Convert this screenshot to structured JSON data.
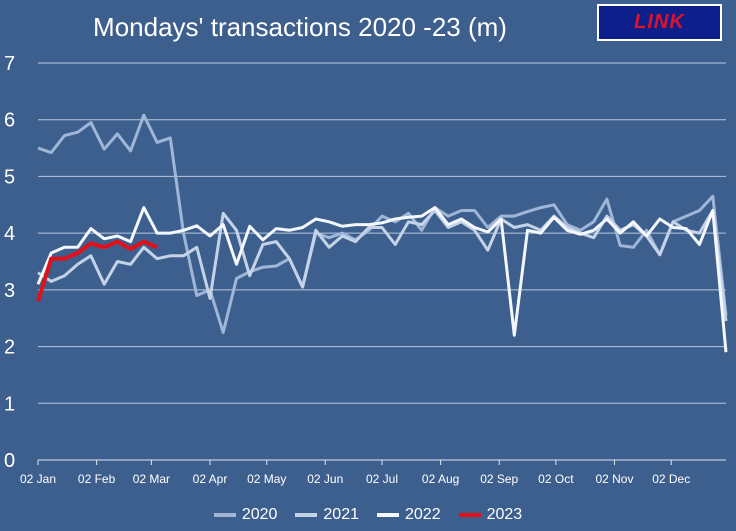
{
  "title": "Mondays' transactions 2020 -23 (m)",
  "logo_text": "LINK",
  "chart_data": {
    "type": "line",
    "title": "Mondays' transactions 2020 -23 (m)",
    "ylim": [
      0,
      7
    ],
    "yticks": [
      "0",
      "1",
      "2",
      "3",
      "4",
      "5",
      "6",
      "7"
    ],
    "xlim": [
      0,
      52
    ],
    "xticks": [
      {
        "label": "02 Jan",
        "x": 0
      },
      {
        "label": "02 Feb",
        "x": 4.43
      },
      {
        "label": "02 Mar",
        "x": 8.57
      },
      {
        "label": "02 Apr",
        "x": 13
      },
      {
        "label": "02 May",
        "x": 17.29
      },
      {
        "label": "02 Jun",
        "x": 21.71
      },
      {
        "label": "02 Jul",
        "x": 26
      },
      {
        "label": "02 Aug",
        "x": 30.43
      },
      {
        "label": "02 Sep",
        "x": 34.86
      },
      {
        "label": "02 Oct",
        "x": 39.14
      },
      {
        "label": "02 Nov",
        "x": 43.57
      },
      {
        "label": "02 Dec",
        "x": 47.86
      }
    ],
    "grid": true,
    "legend_position": "bottom",
    "series": [
      {
        "name": "2020",
        "color": "#9fb6d6",
        "values": [
          5.5,
          5.42,
          5.72,
          5.78,
          5.95,
          5.48,
          5.75,
          5.45,
          6.08,
          5.6,
          5.68,
          4.0,
          2.9,
          3.0,
          2.25,
          3.2,
          3.32,
          3.4,
          3.42,
          3.55,
          3.05,
          4.0,
          3.92,
          4.0,
          3.88,
          4.05,
          4.3,
          4.2,
          4.35,
          4.05,
          4.45,
          4.3,
          4.4,
          4.4,
          4.1,
          4.3,
          4.3,
          4.38,
          4.45,
          4.5,
          4.15,
          4.05,
          4.2,
          4.6,
          3.78,
          3.75,
          4.05,
          3.62,
          4.2,
          4.3,
          4.4,
          4.65,
          2.55
        ]
      },
      {
        "name": "2021",
        "color": "#c4d3e8",
        "values": [
          3.3,
          3.15,
          3.25,
          3.45,
          3.6,
          3.1,
          3.5,
          3.45,
          3.75,
          3.55,
          3.6,
          3.6,
          3.75,
          2.85,
          4.35,
          4.05,
          3.25,
          3.8,
          3.85,
          3.55,
          3.05,
          4.05,
          3.75,
          3.95,
          3.85,
          4.1,
          4.1,
          3.8,
          4.2,
          4.15,
          4.4,
          4.1,
          4.2,
          4.05,
          3.7,
          4.25,
          4.1,
          4.15,
          4.05,
          4.3,
          4.1,
          4.0,
          3.92,
          4.3,
          4.05,
          4.15,
          3.95,
          3.62,
          4.2,
          4.05,
          4.0,
          4.4,
          2.45
        ]
      },
      {
        "name": "2022",
        "color": "#f4f7fb",
        "values": [
          3.1,
          3.65,
          3.75,
          3.75,
          4.08,
          3.9,
          3.95,
          3.85,
          4.45,
          4.0,
          4.0,
          4.05,
          4.13,
          3.95,
          4.15,
          3.45,
          4.12,
          3.88,
          4.08,
          4.05,
          4.1,
          4.25,
          4.2,
          4.12,
          4.15,
          4.15,
          4.18,
          4.25,
          4.28,
          4.3,
          4.45,
          4.15,
          4.25,
          4.1,
          4.02,
          4.25,
          2.2,
          4.05,
          4.0,
          4.28,
          4.05,
          3.98,
          4.05,
          4.25,
          4.0,
          4.2,
          3.95,
          4.25,
          4.1,
          4.08,
          3.8,
          4.4,
          1.9
        ]
      },
      {
        "name": "2023",
        "color": "#e3101a",
        "values": [
          2.8,
          3.55,
          3.55,
          3.65,
          3.82,
          3.75,
          3.85,
          3.72,
          3.85,
          3.75
        ]
      }
    ]
  }
}
